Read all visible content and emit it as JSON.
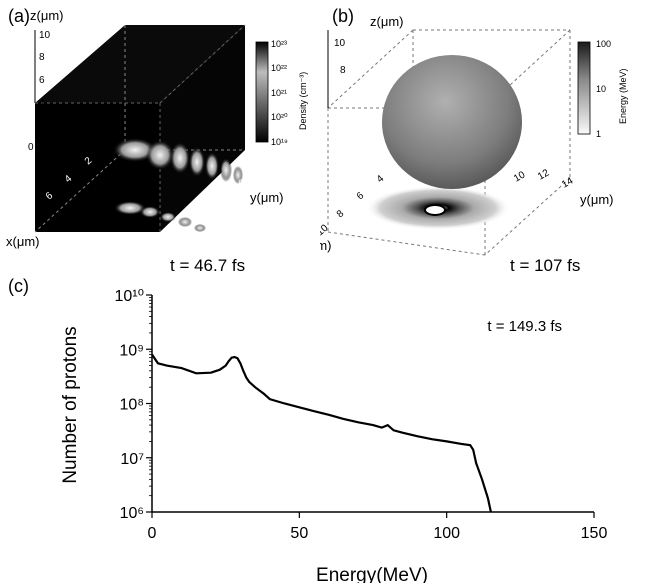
{
  "panels": {
    "a": {
      "label": "(a)",
      "time": "t = 46.7 fs",
      "axes": {
        "x": "x(μm)",
        "y": "y(μm)",
        "z": "z(μm)"
      },
      "z_ticks": [
        "10",
        "8",
        "6",
        "4",
        "2",
        "0"
      ],
      "x_ticks": [
        "2",
        "4",
        "6",
        "8",
        "10"
      ],
      "y_ticks": [
        "10"
      ],
      "colorbar": {
        "title": "Density (cm⁻³)",
        "ticks": [
          "10²³",
          "10²²",
          "10²¹",
          "10²⁰",
          "10¹⁹"
        ]
      }
    },
    "b": {
      "label": "(b)",
      "time": "t = 107 fs",
      "axes": {
        "x": "x(μm)",
        "y": "y(μm)",
        "z": "z(μm)"
      },
      "z_ticks": [
        "10",
        "8"
      ],
      "x_ticks": [
        "4",
        "6",
        "8",
        "10"
      ],
      "y_ticks": [
        "10",
        "12",
        "14"
      ],
      "colorbar": {
        "title": "Energy (MeV)",
        "ticks": [
          "100",
          "10",
          "1"
        ]
      }
    },
    "c": {
      "label": "(c)",
      "annotation": "t = 149.3 fs"
    }
  },
  "chart_data": {
    "type": "line",
    "xlabel": "Energy(MeV)",
    "ylabel": "Number of protons",
    "xlim": [
      0,
      150
    ],
    "ylim": [
      1000000,
      10000000000
    ],
    "yscale": "log",
    "x_ticks": [
      0,
      50,
      100,
      150
    ],
    "x_tick_labels": [
      "0",
      "50",
      "100",
      "150"
    ],
    "y_ticks": [
      1000000,
      10000000,
      100000000,
      1000000000,
      10000000000
    ],
    "y_tick_labels": [
      "10⁶",
      "10⁷",
      "10⁸",
      "10⁹",
      "10¹⁰"
    ],
    "grid": false,
    "series": [
      {
        "x": [
          0,
          2,
          5,
          10,
          15,
          20,
          23,
          25,
          26,
          27,
          28,
          29,
          30,
          31,
          32,
          33,
          35,
          38,
          40,
          45,
          50,
          55,
          60,
          65,
          70,
          75,
          78,
          80,
          82,
          85,
          90,
          95,
          100,
          105,
          108,
          109,
          110,
          112,
          114,
          115
        ],
        "y": [
          800000000,
          550000000,
          500000000,
          450000000,
          360000000,
          370000000,
          420000000,
          500000000,
          600000000,
          700000000,
          720000000,
          680000000,
          550000000,
          400000000,
          300000000,
          250000000,
          200000000,
          150000000,
          120000000,
          100000000,
          85000000,
          72000000,
          62000000,
          52000000,
          45000000,
          40000000,
          36000000,
          40000000,
          32000000,
          29000000,
          25000000,
          22000000,
          20000000,
          18000000,
          17000000,
          14000000,
          8000000,
          4000000,
          1800000,
          1000000
        ]
      }
    ]
  }
}
